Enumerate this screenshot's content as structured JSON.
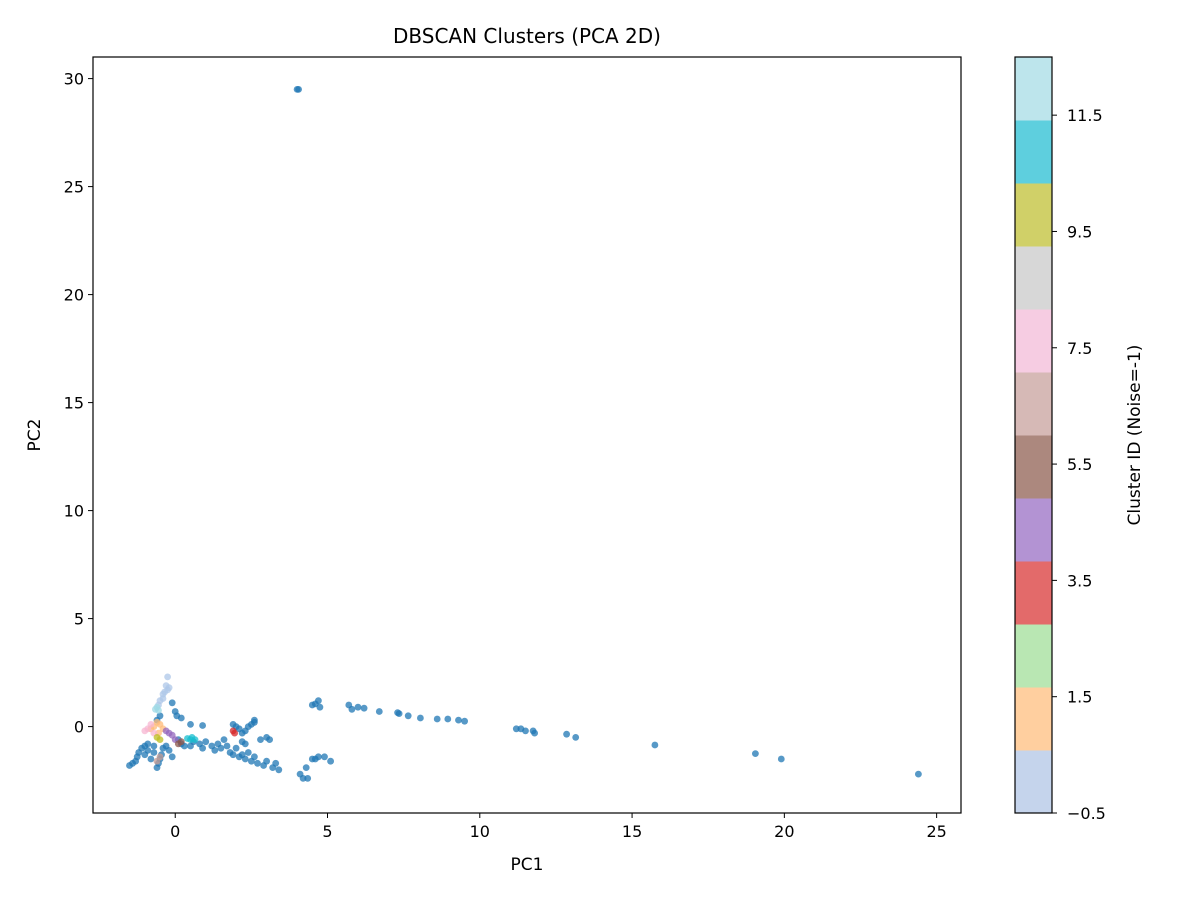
{
  "chart_data": {
    "type": "scatter",
    "title": "DBSCAN Clusters (PCA 2D)",
    "xlabel": "PC1",
    "ylabel": "PC2",
    "xlim": [
      -2.7,
      25.8
    ],
    "ylim": [
      -4.0,
      31.0
    ],
    "xticks": [
      0,
      5,
      10,
      15,
      20,
      25
    ],
    "yticks": [
      0,
      5,
      10,
      15,
      20,
      25,
      30
    ],
    "grid": false,
    "colorbar": {
      "label": "Cluster ID (Noise=-1)",
      "range": [
        -0.5,
        12.5
      ],
      "ticks": [
        -0.5,
        1.5,
        3.5,
        5.5,
        7.5,
        9.5,
        11.5
      ],
      "tick_labels": [
        "−0.5",
        "1.5",
        "3.5",
        "5.5",
        "7.5",
        "9.5",
        "11.5"
      ],
      "colors": [
        "#c5d4ec",
        "#ffcf9f",
        "#b9e7b3",
        "#e36a6a",
        "#b393d3",
        "#ac887e",
        "#d6b9b6",
        "#f6cce2",
        "#d7d7d7",
        "#d0d068",
        "#5ecfde",
        "#bde5ec"
      ]
    },
    "series": [
      {
        "cluster": -1,
        "color": "#1f77b4",
        "points": [
          [
            4.0,
            29.5
          ],
          [
            4.05,
            29.5
          ],
          [
            -1.5,
            -1.8
          ],
          [
            -1.4,
            -1.7
          ],
          [
            -1.3,
            -1.6
          ],
          [
            -1.25,
            -1.4
          ],
          [
            -1.2,
            -1.2
          ],
          [
            -1.1,
            -1.0
          ],
          [
            -1.0,
            -0.9
          ],
          [
            -0.9,
            -0.8
          ],
          [
            -0.9,
            -1.1
          ],
          [
            -1.0,
            -1.3
          ],
          [
            -0.8,
            -1.5
          ],
          [
            -0.7,
            -1.2
          ],
          [
            -0.7,
            -0.9
          ],
          [
            -0.6,
            -1.9
          ],
          [
            -0.55,
            -1.7
          ],
          [
            -0.5,
            -1.5
          ],
          [
            -0.45,
            -1.3
          ],
          [
            -0.4,
            -1.0
          ],
          [
            -0.3,
            -0.9
          ],
          [
            -0.2,
            -1.1
          ],
          [
            -0.1,
            -1.4
          ],
          [
            -0.6,
            0.3
          ],
          [
            -0.5,
            0.5
          ],
          [
            -0.1,
            1.1
          ],
          [
            0.0,
            0.7
          ],
          [
            0.05,
            0.5
          ],
          [
            0.2,
            0.4
          ],
          [
            0.5,
            0.1
          ],
          [
            0.9,
            0.05
          ],
          [
            0.1,
            -0.6
          ],
          [
            0.2,
            -0.8
          ],
          [
            0.3,
            -0.9
          ],
          [
            0.5,
            -0.9
          ],
          [
            0.6,
            -0.7
          ],
          [
            0.8,
            -0.8
          ],
          [
            0.9,
            -1.0
          ],
          [
            1.0,
            -0.7
          ],
          [
            1.2,
            -0.9
          ],
          [
            1.3,
            -1.1
          ],
          [
            1.4,
            -0.8
          ],
          [
            1.5,
            -1.0
          ],
          [
            1.6,
            -0.6
          ],
          [
            1.7,
            -0.9
          ],
          [
            1.8,
            -1.2
          ],
          [
            1.9,
            -1.3
          ],
          [
            2.0,
            -1.0
          ],
          [
            2.1,
            -1.4
          ],
          [
            2.2,
            -1.3
          ],
          [
            2.3,
            -1.5
          ],
          [
            2.4,
            -1.2
          ],
          [
            2.5,
            -1.6
          ],
          [
            2.6,
            -1.4
          ],
          [
            2.7,
            -1.7
          ],
          [
            2.9,
            -1.8
          ],
          [
            3.0,
            -1.6
          ],
          [
            3.2,
            -1.9
          ],
          [
            3.3,
            -1.7
          ],
          [
            3.4,
            -2.0
          ],
          [
            2.8,
            -0.6
          ],
          [
            3.0,
            -0.5
          ],
          [
            3.1,
            -0.6
          ],
          [
            1.9,
            0.1
          ],
          [
            2.0,
            0.0
          ],
          [
            2.1,
            -0.1
          ],
          [
            2.2,
            -0.3
          ],
          [
            2.3,
            -0.2
          ],
          [
            2.4,
            0.0
          ],
          [
            2.5,
            0.1
          ],
          [
            2.6,
            0.2
          ],
          [
            2.6,
            0.3
          ],
          [
            2.2,
            -0.7
          ],
          [
            2.3,
            -0.8
          ],
          [
            4.1,
            -2.2
          ],
          [
            4.2,
            -2.4
          ],
          [
            4.35,
            -2.4
          ],
          [
            4.3,
            -1.9
          ],
          [
            4.5,
            -1.5
          ],
          [
            4.6,
            -1.5
          ],
          [
            4.7,
            -1.4
          ],
          [
            4.9,
            -1.4
          ],
          [
            5.1,
            -1.6
          ],
          [
            4.5,
            1.0
          ],
          [
            4.6,
            1.05
          ],
          [
            4.7,
            1.2
          ],
          [
            4.75,
            0.9
          ],
          [
            5.7,
            1.0
          ],
          [
            5.8,
            0.8
          ],
          [
            6.0,
            0.9
          ],
          [
            6.2,
            0.85
          ],
          [
            6.7,
            0.7
          ],
          [
            7.3,
            0.65
          ],
          [
            7.35,
            0.6
          ],
          [
            7.65,
            0.5
          ],
          [
            8.05,
            0.4
          ],
          [
            8.6,
            0.35
          ],
          [
            8.95,
            0.35
          ],
          [
            9.3,
            0.3
          ],
          [
            9.5,
            0.25
          ],
          [
            11.2,
            -0.1
          ],
          [
            11.35,
            -0.1
          ],
          [
            11.5,
            -0.2
          ],
          [
            11.75,
            -0.2
          ],
          [
            11.8,
            -0.3
          ],
          [
            12.85,
            -0.35
          ],
          [
            13.15,
            -0.5
          ],
          [
            15.75,
            -0.85
          ],
          [
            19.05,
            -1.25
          ],
          [
            19.9,
            -1.5
          ],
          [
            24.4,
            -2.2
          ]
        ]
      },
      {
        "cluster": 0,
        "color": "#aec7e8",
        "points": [
          [
            -0.25,
            2.3
          ],
          [
            -0.3,
            1.9
          ],
          [
            -0.25,
            1.7
          ],
          [
            -0.35,
            1.6
          ],
          [
            -0.4,
            1.5
          ],
          [
            -0.4,
            1.3
          ],
          [
            -0.5,
            1.2
          ],
          [
            -0.55,
            1.0
          ],
          [
            -0.2,
            1.8
          ]
        ]
      },
      {
        "cluster": 1,
        "color": "#ffbb78",
        "points": [
          [
            -0.8,
            -0.1
          ],
          [
            -0.7,
            0.0
          ],
          [
            -0.6,
            0.2
          ],
          [
            -0.5,
            0.1
          ],
          [
            -0.4,
            -0.1
          ],
          [
            -0.55,
            -0.3
          ]
        ]
      },
      {
        "cluster": 3,
        "color": "#d62728",
        "points": [
          [
            1.9,
            -0.2
          ],
          [
            1.95,
            -0.3
          ]
        ]
      },
      {
        "cluster": 4,
        "color": "#9467bd",
        "points": [
          [
            -0.3,
            -0.2
          ],
          [
            -0.1,
            -0.4
          ],
          [
            0.0,
            -0.6
          ],
          [
            -0.2,
            -0.3
          ]
        ]
      },
      {
        "cluster": 5,
        "color": "#8c564b",
        "points": [
          [
            0.1,
            -0.8
          ],
          [
            0.2,
            -0.7
          ]
        ]
      },
      {
        "cluster": 6,
        "color": "#c49c94",
        "points": [
          [
            -0.6,
            -1.6
          ],
          [
            -0.5,
            -1.4
          ]
        ]
      },
      {
        "cluster": 7,
        "color": "#f7b6d2",
        "points": [
          [
            -1.0,
            -0.2
          ],
          [
            -0.9,
            -0.1
          ],
          [
            -0.8,
            0.1
          ],
          [
            -0.7,
            -0.3
          ]
        ]
      },
      {
        "cluster": 9,
        "color": "#bcbd22",
        "points": [
          [
            -0.6,
            -0.5
          ],
          [
            -0.5,
            -0.6
          ]
        ]
      },
      {
        "cluster": 10,
        "color": "#17becf",
        "points": [
          [
            0.4,
            -0.55
          ],
          [
            0.5,
            -0.6
          ],
          [
            0.55,
            -0.5
          ],
          [
            0.65,
            -0.6
          ]
        ]
      },
      {
        "cluster": 11,
        "color": "#9edae5",
        "points": [
          [
            -0.65,
            0.8
          ],
          [
            -0.6,
            0.9
          ],
          [
            -0.55,
            0.75
          ]
        ]
      }
    ]
  }
}
